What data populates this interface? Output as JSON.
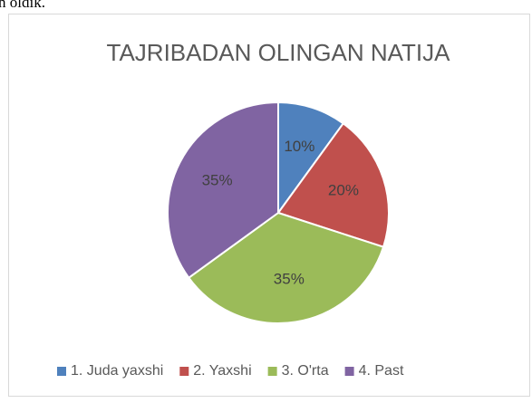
{
  "context_text": "n oldik.",
  "chart_data": {
    "type": "pie",
    "title": "TAJRIBADAN OLINGAN NATIJA",
    "categories": [
      "1. Juda yaxshi",
      "2. Yaxshi",
      "3. O'rta",
      "4. Past"
    ],
    "values": [
      10,
      20,
      35,
      35
    ],
    "colors": [
      "#4f81bd",
      "#c0504d",
      "#9bbb59",
      "#8064a2"
    ],
    "legend": "bottom"
  }
}
